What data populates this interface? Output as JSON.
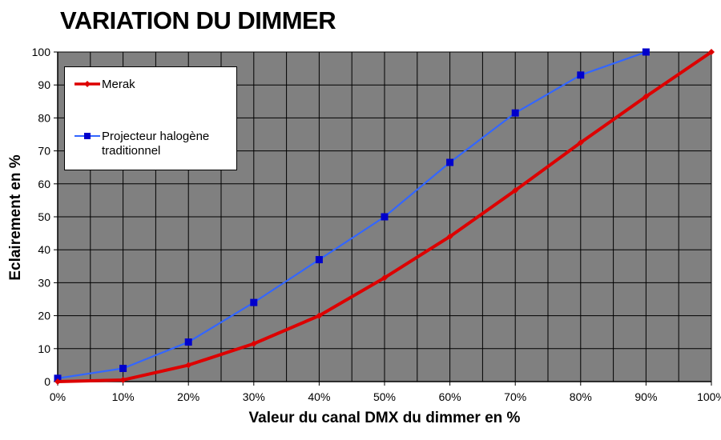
{
  "chart_data": {
    "type": "line",
    "title": "VARIATION DU DIMMER",
    "xlabel": "Valeur du canal DMX du dimmer en %",
    "ylabel": "Eclairement en %",
    "categories": [
      "0%",
      "10%",
      "20%",
      "30%",
      "40%",
      "50%",
      "60%",
      "70%",
      "80%",
      "90%",
      "100%"
    ],
    "x": [
      0,
      10,
      20,
      30,
      40,
      50,
      60,
      70,
      80,
      90,
      100
    ],
    "ylim": [
      0,
      100
    ],
    "yticks": [
      "0",
      "10",
      "20",
      "30",
      "40",
      "50",
      "60",
      "70",
      "80",
      "90",
      "100"
    ],
    "grid": true,
    "legend_position": "top-left",
    "plot_background": "#808080",
    "series": [
      {
        "name": "Merak",
        "color": "#dd0000",
        "marker": "diamond",
        "values": [
          0,
          0.5,
          5,
          11.5,
          20,
          31.5,
          44,
          58,
          72.5,
          86.5,
          100
        ]
      },
      {
        "name": "Projecteur halogène traditionnel",
        "color": "#3366ff",
        "marker_color": "#0000cc",
        "marker": "square",
        "values": [
          1,
          4,
          12,
          24,
          37,
          50,
          66.5,
          81.5,
          93,
          100,
          null
        ]
      }
    ]
  }
}
